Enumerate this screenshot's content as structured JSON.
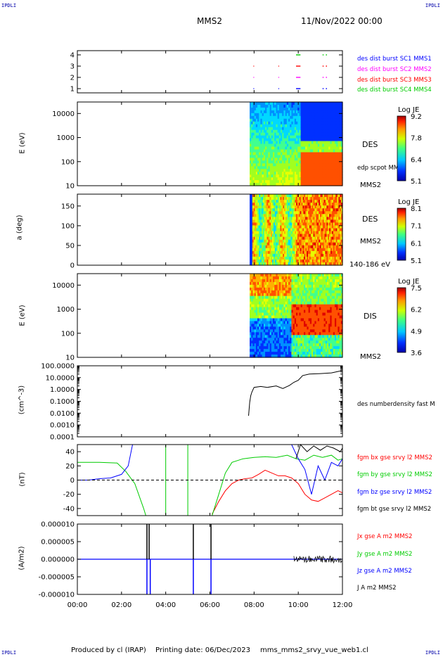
{
  "header": {
    "corner_left": "IPDLI",
    "corner_right": "IPDLI",
    "spacecraft": "MMS2",
    "datetime": "11/Nov/2022 00:00"
  },
  "footer": {
    "corner_left": "IPDLI",
    "corner_right": "IPDLI",
    "produced_by": "Produced by cl (IRAP)",
    "printing_date": "Printing date: 06/Dec/2023",
    "script_name": "mms_mms2_srvy_vue_web1.cl"
  },
  "colors": {
    "blue": "#0000ff",
    "magenta": "#ff00ff",
    "red": "#ff0000",
    "green": "#00cc00",
    "black": "#000000"
  },
  "chart_data": [
    {
      "type": "scatter",
      "id": "burst",
      "yticks": [
        "1",
        "2",
        "3",
        "4"
      ],
      "legend": [
        {
          "name": "des dist burst SC1 MMS1",
          "color": "#0000ff"
        },
        {
          "name": "des dist burst SC2 MMS2",
          "color": "#ff00ff"
        },
        {
          "name": "des dist burst SC3 MMS3",
          "color": "#ff0000"
        },
        {
          "name": "des dist burst SC4 MMS4",
          "color": "#00cc00"
        }
      ],
      "segments": [
        {
          "sc": 1,
          "t": [
            7.97,
            7.98
          ]
        },
        {
          "sc": 1,
          "t": [
            9.1,
            9.12
          ]
        },
        {
          "sc": 1,
          "t": [
            9.9,
            10.1
          ]
        },
        {
          "sc": 1,
          "t": [
            11.1,
            11.15
          ]
        },
        {
          "sc": 1,
          "t": [
            11.25,
            11.3
          ]
        },
        {
          "sc": 2,
          "t": [
            7.97,
            7.98
          ]
        },
        {
          "sc": 2,
          "t": [
            9.1,
            9.12
          ]
        },
        {
          "sc": 2,
          "t": [
            9.9,
            10.1
          ]
        },
        {
          "sc": 2,
          "t": [
            11.1,
            11.15
          ]
        },
        {
          "sc": 2,
          "t": [
            11.25,
            11.3
          ]
        },
        {
          "sc": 3,
          "t": [
            7.97,
            7.98
          ]
        },
        {
          "sc": 3,
          "t": [
            9.1,
            9.12
          ]
        },
        {
          "sc": 3,
          "t": [
            9.9,
            10.1
          ]
        },
        {
          "sc": 3,
          "t": [
            11.1,
            11.15
          ]
        },
        {
          "sc": 3,
          "t": [
            11.25,
            11.3
          ]
        },
        {
          "sc": 4,
          "t": [
            9.9,
            10.1
          ]
        },
        {
          "sc": 4,
          "t": [
            11.1,
            11.15
          ]
        },
        {
          "sc": 4,
          "t": [
            11.25,
            11.3
          ]
        }
      ]
    },
    {
      "type": "heatmap",
      "id": "des_energy",
      "ylabel": "E (eV)",
      "yscale": "log",
      "ylim": [
        10,
        30000
      ],
      "yticks": [
        "10",
        "100",
        "1000",
        "10000"
      ],
      "species_label": "DES",
      "overlay_label": "edp scpot MMS2",
      "sc_label": "MMS2",
      "colorbar": {
        "title": "Log JE",
        "ticks": [
          "9.2",
          "7.8",
          "6.4",
          "5.1"
        ]
      }
    },
    {
      "type": "heatmap",
      "id": "des_pitch",
      "ylabel": "a (deg)",
      "ylim": [
        0,
        180
      ],
      "yticks": [
        "0",
        "50",
        "100",
        "150"
      ],
      "species_label": "DES",
      "sc_label": "MMS2",
      "energy_range": "140-186 eV",
      "colorbar": {
        "title": "Log JE",
        "ticks": [
          "8.1",
          "7.1",
          "6.1",
          "5.1"
        ]
      }
    },
    {
      "type": "heatmap",
      "id": "dis_energy",
      "ylabel": "E (eV)",
      "yscale": "log",
      "ylim": [
        10,
        30000
      ],
      "yticks": [
        "10",
        "100",
        "1000",
        "10000"
      ],
      "species_label": "DIS",
      "sc_label": "MMS2",
      "colorbar": {
        "title": "Log JE",
        "ticks": [
          "7.5",
          "6.2",
          "4.9",
          "3.6"
        ]
      }
    },
    {
      "type": "line",
      "id": "density",
      "ylabel": "(cm^-3)",
      "yscale": "log",
      "ylim": [
        0.001,
        100
      ],
      "yticks": [
        "0.0001",
        "0.0010",
        "0.0100",
        "0.1000",
        "1.0000",
        "10.0000",
        "100.0000"
      ],
      "series": [
        {
          "name": "des numberdensity fast M",
          "color": "#000000",
          "x": [
            7.75,
            7.8,
            7.85,
            7.9,
            8.0,
            8.3,
            8.6,
            9.0,
            9.3,
            9.6,
            9.8,
            10.0,
            10.2,
            10.5,
            11.0,
            11.5,
            12.0
          ],
          "y": [
            0.006,
            0.08,
            0.3,
            0.6,
            1.5,
            1.8,
            1.5,
            2.0,
            1.2,
            2.2,
            4.0,
            6.0,
            15,
            20,
            22,
            25,
            40
          ]
        }
      ]
    },
    {
      "type": "line",
      "id": "bfield",
      "ylabel": "(nT)",
      "ylim": [
        -50,
        50
      ],
      "yticks": [
        "-40",
        "-20",
        "0",
        "20",
        "40"
      ],
      "series": [
        {
          "name": "fgm bx gse srvy l2 MMS2",
          "color": "#ff0000",
          "x": [
            6.1,
            6.4,
            6.7,
            7.0,
            7.3,
            7.6,
            7.9,
            8.2,
            8.5,
            8.8,
            9.1,
            9.4,
            9.7,
            10.0,
            10.3,
            10.6,
            10.9,
            11.2,
            11.5,
            11.8,
            12.0
          ],
          "y": [
            -48,
            -30,
            -15,
            -5,
            0,
            2,
            3,
            8,
            14,
            10,
            6,
            6,
            3,
            -5,
            -20,
            -28,
            -30,
            -25,
            -20,
            -15,
            -18
          ]
        },
        {
          "name": "fgm by gse srvy l2 MMS2",
          "color": "#00cc00",
          "x": [
            0,
            1,
            1.8,
            2.2,
            2.6,
            3.0,
            3.1,
            6.1,
            6.4,
            6.7,
            7.0,
            7.5,
            8.0,
            8.5,
            9.0,
            9.5,
            9.9,
            10.3,
            10.7,
            11.1,
            11.5,
            11.8,
            12.0
          ],
          "y": [
            25,
            25,
            24,
            12,
            -5,
            -40,
            -50,
            -50,
            -20,
            10,
            25,
            30,
            32,
            33,
            32,
            35,
            30,
            28,
            35,
            32,
            35,
            28,
            30
          ]
        },
        {
          "name": "fgm bz gse srvy l2 MMS2",
          "color": "#0000ff",
          "x": [
            0,
            0.5,
            1.0,
            1.5,
            2.0,
            2.3,
            2.5,
            9.7,
            10.0,
            10.3,
            10.6,
            10.9,
            11.2,
            11.5,
            11.8,
            12.0
          ],
          "y": [
            0,
            0,
            2,
            3,
            8,
            20,
            50,
            50,
            30,
            15,
            -20,
            20,
            0,
            25,
            20,
            30
          ]
        },
        {
          "name": "fgm bt gse srvy l2 MMS2",
          "color": "#000000",
          "x": [
            9.9,
            10.1,
            10.4,
            10.7,
            11.0,
            11.3,
            11.6,
            11.9,
            12.0
          ],
          "y": [
            30,
            50,
            40,
            48,
            42,
            48,
            45,
            40,
            45
          ]
        }
      ]
    },
    {
      "type": "line",
      "id": "current",
      "ylabel": "(A/m2)",
      "ylim": [
        -1e-05,
        1e-05
      ],
      "yticks": [
        "-0.000010",
        "-0.000005",
        "0.000000",
        "0.000005",
        "0.000010"
      ],
      "series": [
        {
          "name": "Jx gse A m2 MMS2",
          "color": "#ff0000"
        },
        {
          "name": "Jy gse A m2 MMS2",
          "color": "#00cc00"
        },
        {
          "name": "Jz gse A m2 MMS2",
          "color": "#0000ff"
        },
        {
          "name": "J A m2 MMS2",
          "color": "#000000"
        }
      ]
    }
  ],
  "time_axis": {
    "xlim": [
      0,
      12
    ],
    "ticks": [
      "00:00",
      "02:00",
      "04:00",
      "06:00",
      "08:00",
      "10:00",
      "12:00"
    ]
  }
}
